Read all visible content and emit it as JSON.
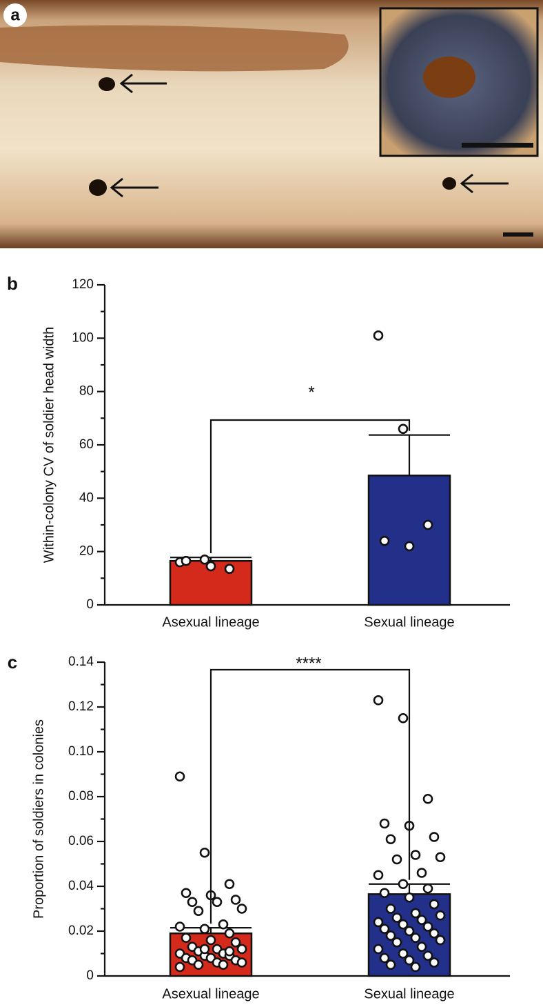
{
  "photo_panel": {
    "label": "a"
  },
  "chart_data": [
    {
      "type": "bar",
      "label": "b",
      "ylabel": "Within-colony CV of soldier head width",
      "categories": [
        "Asexual lineage",
        "Sexual lineage"
      ],
      "values": [
        16.5,
        48.5
      ],
      "errors": [
        1.3,
        15.2
      ],
      "colors": [
        "#d42a1c",
        "#22308a"
      ],
      "points": [
        [
          16,
          17,
          13.5,
          16.5,
          14.5
        ],
        [
          101,
          66,
          30,
          24,
          22
        ]
      ],
      "significance": "*",
      "ylim": [
        0,
        120
      ],
      "yticks": [
        0,
        20,
        40,
        60,
        80,
        100,
        120
      ]
    },
    {
      "type": "bar",
      "label": "c",
      "ylabel": "Proportion of soldiers in colonies",
      "categories": [
        "Asexual lineage",
        "Sexual lineage"
      ],
      "values": [
        0.019,
        0.0365
      ],
      "errors": [
        0.0025,
        0.0045
      ],
      "colors": [
        "#d42a1c",
        "#22308a"
      ],
      "points": [
        [
          0.089,
          0.055,
          0.041,
          0.037,
          0.036,
          0.034,
          0.033,
          0.033,
          0.03,
          0.029,
          0.023,
          0.022,
          0.021,
          0.019,
          0.017,
          0.016,
          0.015,
          0.013,
          0.012,
          0.012,
          0.011,
          0.01,
          0.01,
          0.009,
          0.009,
          0.008,
          0.008,
          0.007,
          0.007,
          0.006,
          0.006,
          0.005,
          0.005,
          0.004,
          0.012,
          0.011
        ],
        [
          0.123,
          0.115,
          0.079,
          0.068,
          0.067,
          0.062,
          0.061,
          0.054,
          0.053,
          0.052,
          0.046,
          0.045,
          0.041,
          0.039,
          0.037,
          0.035,
          0.032,
          0.03,
          0.028,
          0.027,
          0.026,
          0.025,
          0.024,
          0.023,
          0.022,
          0.021,
          0.02,
          0.019,
          0.018,
          0.017,
          0.016,
          0.015,
          0.013,
          0.012,
          0.01,
          0.009,
          0.008,
          0.007,
          0.006,
          0.005,
          0.004
        ]
      ],
      "significance": "****",
      "ylim": [
        0,
        0.14
      ],
      "yticks": [
        0,
        0.02,
        0.04,
        0.06,
        {
          "value": 0.1,
          "label": "0.10"
        },
        0.08,
        0.12,
        0.14
      ]
    }
  ]
}
